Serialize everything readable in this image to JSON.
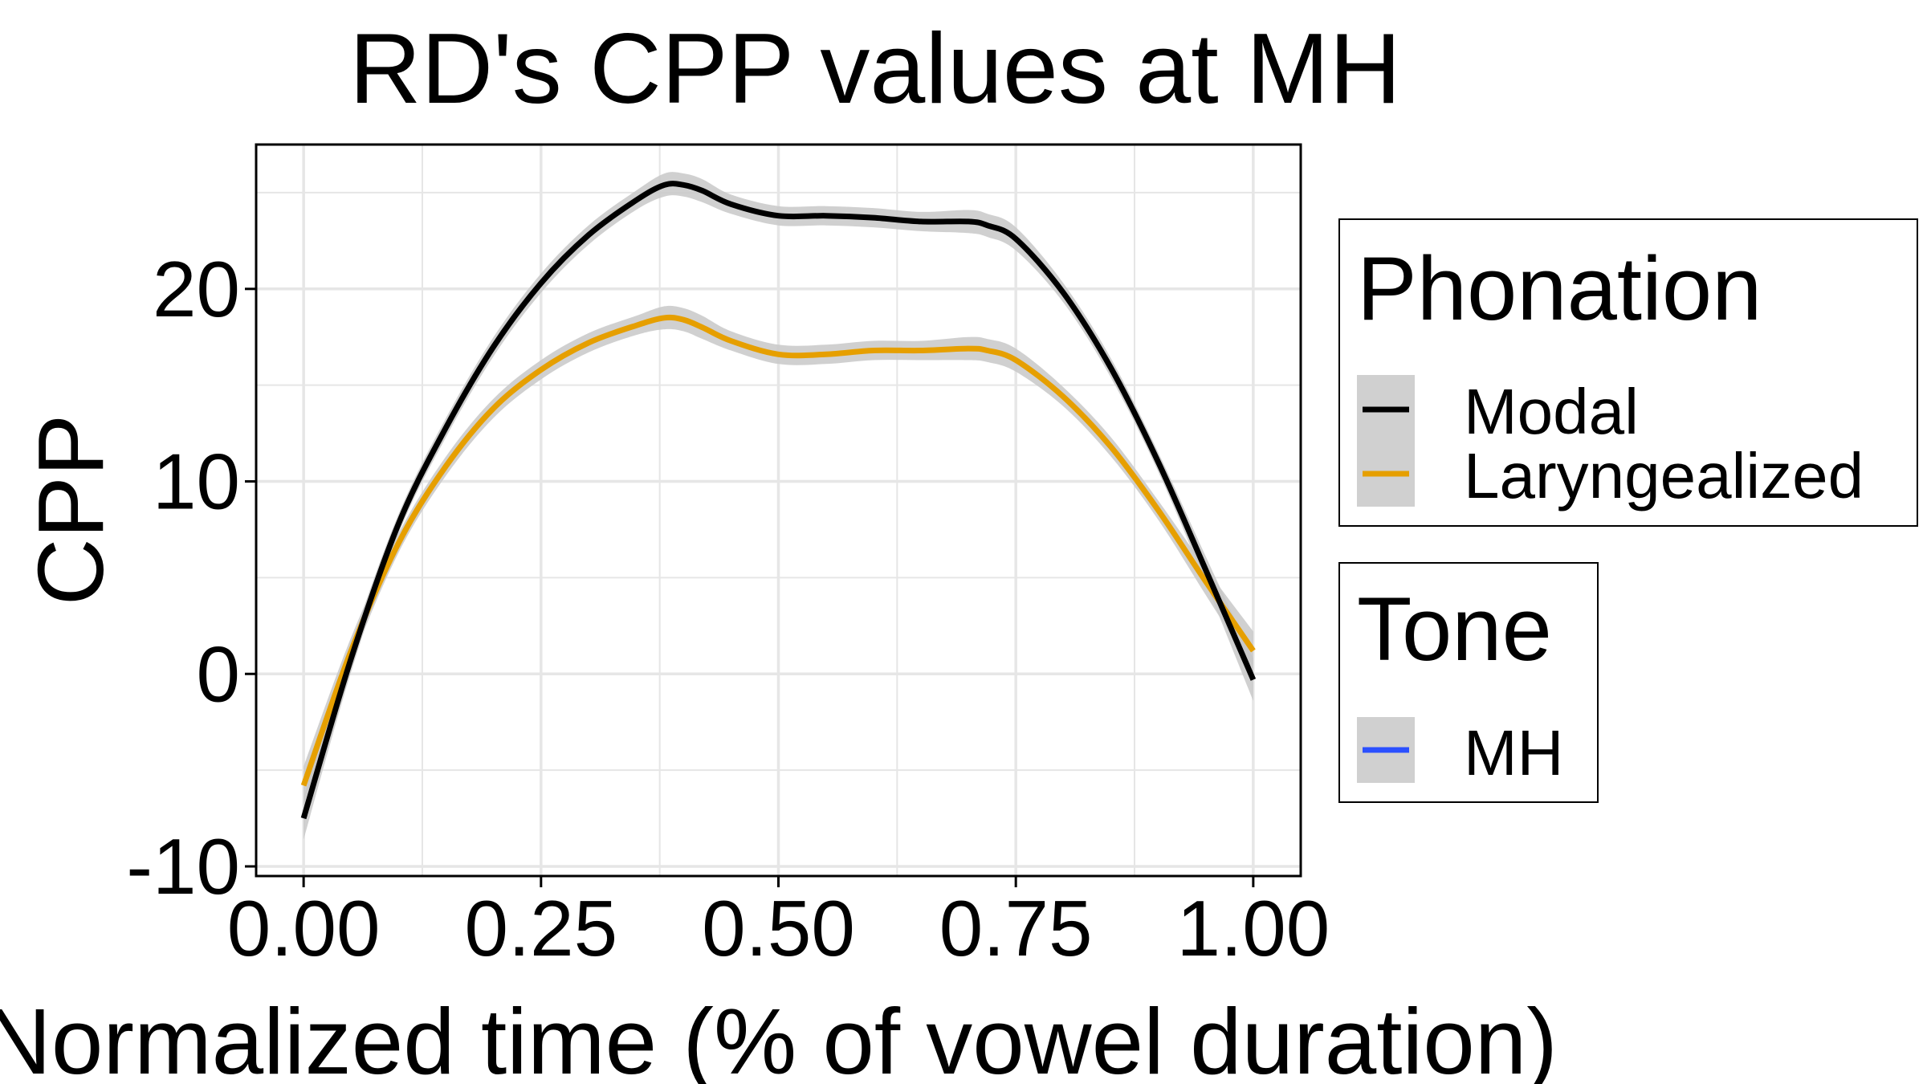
{
  "chart_data": {
    "type": "line",
    "title": "RD's CPP values at MH",
    "xlabel": "Normalized time (% of vowel duration)",
    "ylabel": "CPP",
    "xlim": [
      -0.05,
      1.05
    ],
    "ylim": [
      -10.5,
      27.5
    ],
    "x_ticks": [
      0.0,
      0.25,
      0.5,
      0.75,
      1.0
    ],
    "x_tick_labels": [
      "0.00",
      "0.25",
      "0.50",
      "0.75",
      "1.00"
    ],
    "y_ticks": [
      -10,
      0,
      10,
      20
    ],
    "y_tick_labels": [
      "-10",
      "0",
      "10",
      "20"
    ],
    "grid": true,
    "confidence_band": true,
    "series": [
      {
        "name": "Modal",
        "color": "#000000",
        "x": [
          0.0,
          0.05,
          0.1,
          0.15,
          0.2,
          0.25,
          0.3,
          0.35,
          0.38,
          0.4,
          0.42,
          0.45,
          0.5,
          0.55,
          0.6,
          0.65,
          0.7,
          0.72,
          0.75,
          0.8,
          0.85,
          0.9,
          0.95,
          1.0
        ],
        "y": [
          -7.5,
          0.8,
          7.8,
          12.8,
          17.0,
          20.3,
          22.8,
          24.6,
          25.4,
          25.4,
          25.1,
          24.4,
          23.8,
          23.8,
          23.7,
          23.5,
          23.5,
          23.3,
          22.6,
          19.8,
          15.9,
          11.0,
          5.4,
          -0.3
        ],
        "band_halfwidth": [
          1.1,
          0.7,
          0.5,
          0.5,
          0.5,
          0.5,
          0.5,
          0.5,
          0.6,
          0.6,
          0.6,
          0.5,
          0.5,
          0.5,
          0.5,
          0.5,
          0.6,
          0.6,
          0.6,
          0.5,
          0.5,
          0.5,
          0.7,
          1.1
        ]
      },
      {
        "name": "Laryngealized",
        "color": "#E69F00",
        "x": [
          0.0,
          0.05,
          0.1,
          0.15,
          0.2,
          0.25,
          0.3,
          0.35,
          0.38,
          0.4,
          0.42,
          0.45,
          0.5,
          0.55,
          0.6,
          0.65,
          0.7,
          0.72,
          0.75,
          0.8,
          0.85,
          0.9,
          0.95,
          1.0
        ],
        "y": [
          -5.8,
          1.2,
          6.8,
          10.8,
          13.8,
          15.8,
          17.2,
          18.1,
          18.5,
          18.4,
          18.0,
          17.3,
          16.6,
          16.6,
          16.8,
          16.8,
          16.9,
          16.8,
          16.3,
          14.4,
          11.8,
          8.5,
          4.8,
          1.2
        ],
        "band_halfwidth": [
          1.0,
          0.7,
          0.5,
          0.5,
          0.5,
          0.5,
          0.5,
          0.5,
          0.6,
          0.6,
          0.6,
          0.5,
          0.5,
          0.5,
          0.5,
          0.5,
          0.6,
          0.6,
          0.6,
          0.5,
          0.5,
          0.5,
          0.7,
          1.0
        ]
      }
    ],
    "legend_position": "right",
    "legends": [
      {
        "title": "Phonation",
        "entries": [
          {
            "label": "Modal",
            "color": "#000000"
          },
          {
            "label": "Laryngealized",
            "color": "#E69F00"
          }
        ]
      },
      {
        "title": "Tone",
        "entries": [
          {
            "label": "MH",
            "color": "#2B50FF"
          }
        ]
      }
    ],
    "band_color": "#C8C8C8",
    "grid_color": "#E6E6E6"
  }
}
